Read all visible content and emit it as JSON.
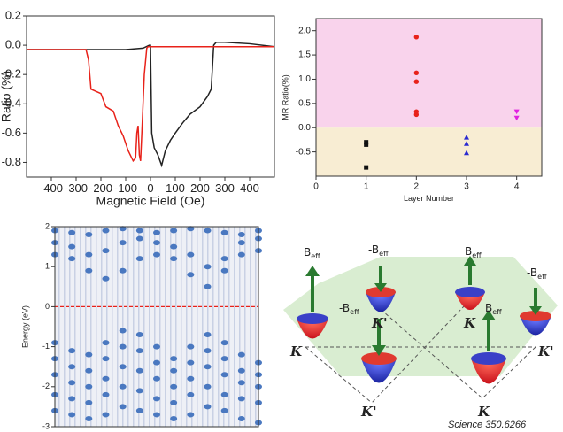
{
  "chart_data": [
    {
      "type": "line",
      "xlabel": "Magnetic Field (Oe)",
      "ylabel": "Ratio (%)",
      "xlim": [
        -500,
        500
      ],
      "xticks": [
        -400,
        -300,
        -200,
        -100,
        0,
        100,
        200,
        300,
        400
      ],
      "ylim": [
        -0.9,
        0.2
      ],
      "yticks": [
        {
          "value": 0.2,
          "label": "0.2"
        },
        {
          "value": 0.0,
          "label": "0.0"
        },
        {
          "value": -0.2,
          "label": "-0.2"
        },
        {
          "value": -0.4,
          "label": "-0.4"
        },
        {
          "value": -0.6,
          "label": "-0.6"
        },
        {
          "value": -0.8,
          "label": "-0.8"
        }
      ],
      "series": [
        {
          "color": "#222222",
          "x": [
            -500,
            -300,
            -100,
            -30,
            -5,
            0,
            5,
            15,
            30,
            45,
            60,
            80,
            100,
            130,
            160,
            200,
            230,
            245,
            250,
            255,
            265,
            300,
            400,
            500
          ],
          "values": [
            -0.03,
            -0.03,
            -0.03,
            -0.02,
            0.0,
            0.0,
            -0.6,
            -0.7,
            -0.75,
            -0.82,
            -0.72,
            -0.65,
            -0.6,
            -0.53,
            -0.47,
            -0.42,
            -0.35,
            -0.3,
            -0.15,
            0.0,
            0.02,
            0.02,
            0.01,
            -0.01
          ]
        },
        {
          "color": "#e8221a",
          "x": [
            -500,
            -300,
            -260,
            -250,
            -240,
            -200,
            -180,
            -150,
            -130,
            -110,
            -90,
            -70,
            -60,
            -55,
            -50,
            -45,
            -40,
            -35,
            -25,
            -15,
            -10,
            0,
            100,
            300,
            500
          ],
          "values": [
            -0.03,
            -0.03,
            -0.03,
            -0.1,
            -0.3,
            -0.33,
            -0.42,
            -0.45,
            -0.55,
            -0.62,
            -0.72,
            -0.79,
            -0.77,
            -0.6,
            -0.55,
            -0.75,
            -0.79,
            -0.6,
            -0.2,
            -0.02,
            -0.01,
            -0.01,
            -0.01,
            -0.01,
            -0.01
          ]
        }
      ]
    },
    {
      "type": "scatter",
      "xlabel": "Layer Number",
      "ylabel": "MR Ratio(%)",
      "xlim": [
        0,
        4.5
      ],
      "xticks": [
        0,
        1,
        2,
        3,
        4
      ],
      "ylim": [
        -1.0,
        2.25
      ],
      "yticks": [
        -0.5,
        {
          "value": 0.0,
          "label": "0.0"
        },
        0.5,
        {
          "value": 1.0,
          "label": "1.0"
        },
        1.5,
        {
          "value": 2.0,
          "label": "2.0"
        }
      ],
      "bands": [
        {
          "ymin": 0,
          "ymax": 2.25,
          "color": "#f9d3ec"
        },
        {
          "ymin": -1.0,
          "ymax": 0,
          "color": "#f8edd3"
        }
      ],
      "series": [
        {
          "color": "#111111",
          "marker": "square",
          "x": [
            1,
            1,
            1
          ],
          "values": [
            -0.3,
            -0.35,
            -0.82
          ]
        },
        {
          "color": "#e8221a",
          "marker": "circle",
          "x": [
            2,
            2,
            2,
            2,
            2
          ],
          "values": [
            1.87,
            1.13,
            0.95,
            0.33,
            0.27
          ]
        },
        {
          "color": "#2a2ad0",
          "marker": "triangle-up",
          "x": [
            3,
            3,
            3
          ],
          "values": [
            -0.2,
            -0.33,
            -0.52
          ]
        },
        {
          "color": "#e020e0",
          "marker": "triangle-down",
          "x": [
            4,
            4
          ],
          "values": [
            0.33,
            0.2
          ]
        }
      ]
    },
    {
      "type": "band-structure",
      "ylabel": "Energy (eV)",
      "xlim": [
        0,
        12
      ],
      "ylim": [
        -3,
        2
      ],
      "yticks": [
        -3,
        -2,
        -1,
        0,
        1,
        2
      ],
      "fermi_level": 0,
      "fermi_color": "#e8221a",
      "color": "#4a78c0",
      "x": [
        0,
        1,
        2,
        3,
        4,
        5,
        6,
        7,
        8,
        9,
        10,
        11,
        12
      ],
      "series": [
        {
          "values": [
            1.9,
            1.85,
            1.8,
            1.9,
            1.95,
            1.9,
            1.85,
            1.9,
            1.95,
            1.9,
            1.85,
            1.8,
            1.9
          ]
        },
        {
          "values": [
            1.6,
            1.5,
            1.3,
            1.4,
            1.6,
            1.7,
            1.6,
            1.5,
            1.3,
            1.0,
            1.2,
            1.6,
            1.7
          ]
        },
        {
          "values": [
            1.3,
            1.2,
            0.9,
            0.7,
            0.9,
            1.2,
            1.3,
            1.2,
            0.8,
            0.5,
            0.9,
            1.3,
            1.4
          ]
        },
        {
          "values": [
            -0.9,
            -1.1,
            -1.2,
            -0.9,
            -0.6,
            -0.7,
            -1.0,
            -1.3,
            -1.0,
            -0.7,
            -0.9,
            -1.2,
            -1.4
          ]
        },
        {
          "values": [
            -1.3,
            -1.5,
            -1.6,
            -1.3,
            -1.0,
            -1.1,
            -1.4,
            -1.6,
            -1.4,
            -1.1,
            -1.3,
            -1.6,
            -1.7
          ]
        },
        {
          "values": [
            -1.7,
            -1.9,
            -2.0,
            -1.8,
            -1.5,
            -1.6,
            -1.8,
            -2.0,
            -1.8,
            -1.5,
            -1.7,
            -1.9,
            -2.0
          ]
        },
        {
          "values": [
            -2.2,
            -2.3,
            -2.4,
            -2.2,
            -2.0,
            -2.1,
            -2.3,
            -2.4,
            -2.2,
            -2.0,
            -2.2,
            -2.3,
            -2.4
          ]
        },
        {
          "values": [
            -2.6,
            -2.7,
            -2.8,
            -2.7,
            -2.5,
            -2.6,
            -2.7,
            -2.8,
            -2.7,
            -2.5,
            -2.6,
            -2.8,
            -2.9
          ]
        }
      ]
    }
  ],
  "diagram": {
    "field_labels": [
      {
        "main": "B",
        "sub": "eff"
      },
      {
        "main": "-B",
        "sub": "eff"
      },
      {
        "main": "B",
        "sub": "eff"
      },
      {
        "main": "-B",
        "sub": "eff"
      },
      {
        "main": "-B",
        "sub": "eff"
      },
      {
        "main": "B",
        "sub": "eff"
      }
    ],
    "valley_labels": [
      "K'",
      "K",
      "K",
      "K'",
      "K'",
      "K"
    ],
    "caption": "Science 350.6266"
  }
}
